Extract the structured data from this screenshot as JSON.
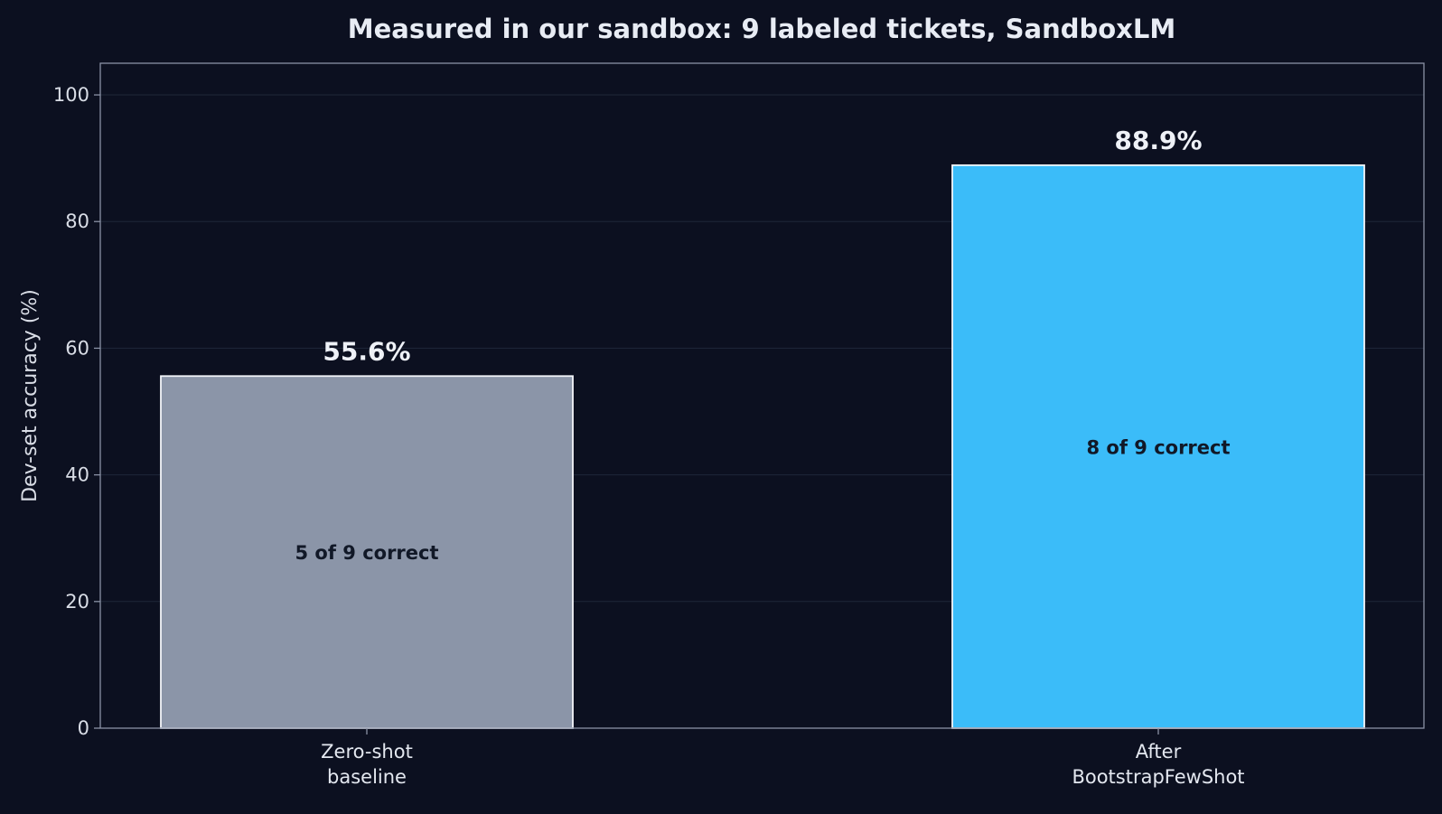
{
  "chart_data": {
    "type": "bar",
    "title": "Measured in our sandbox: 9 labeled tickets, SandboxLM",
    "ylabel": "Dev-set accuracy (%)",
    "xlabel": "",
    "ylim": [
      0,
      105
    ],
    "yticks": [
      0,
      20,
      40,
      60,
      80,
      100
    ],
    "grid": true,
    "categories": [
      [
        "Zero-shot",
        "baseline"
      ],
      [
        "After",
        "BootstrapFewShot"
      ]
    ],
    "values": [
      55.6,
      88.9
    ],
    "value_labels": [
      "55.6%",
      "88.9%"
    ],
    "inner_labels": [
      "5 of 9 correct",
      "8 of 9 correct"
    ],
    "colors": [
      "#8b95a8",
      "#3bbcf9"
    ],
    "edge_color": "#f4f6fa",
    "background": "#0c1020",
    "frame_color": "#8a92a6",
    "grid_color": "#1f2739"
  }
}
